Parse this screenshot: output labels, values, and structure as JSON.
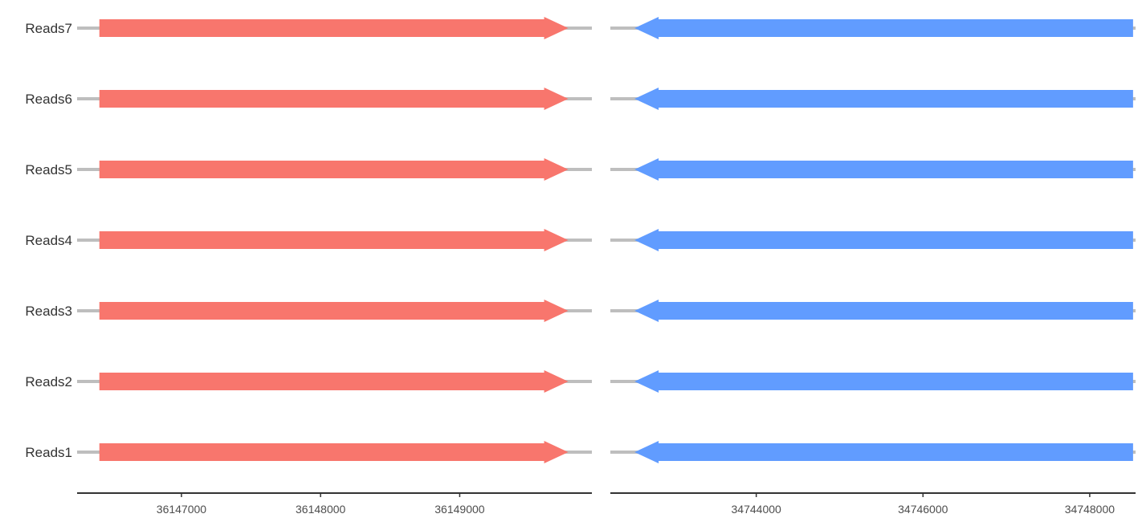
{
  "chart_data": [
    {
      "type": "gene-arrow",
      "title": "",
      "xlabel": "",
      "ylabel": "",
      "xlim": [
        36146250,
        36149950
      ],
      "xticks": [
        36147000,
        36148000,
        36149000
      ],
      "tick_labels": [
        "36147000",
        "36148000",
        "36149000"
      ],
      "rows": [
        "Reads1",
        "Reads2",
        "Reads3",
        "Reads4",
        "Reads5",
        "Reads6",
        "Reads7"
      ],
      "line_range": [
        36146250,
        36149950
      ],
      "features": [
        {
          "row": "Reads1",
          "start": 36146410,
          "end": 36149780,
          "strand": "+"
        },
        {
          "row": "Reads2",
          "start": 36146410,
          "end": 36149780,
          "strand": "+"
        },
        {
          "row": "Reads3",
          "start": 36146410,
          "end": 36149780,
          "strand": "+"
        },
        {
          "row": "Reads4",
          "start": 36146410,
          "end": 36149780,
          "strand": "+"
        },
        {
          "row": "Reads5",
          "start": 36146410,
          "end": 36149780,
          "strand": "+"
        },
        {
          "row": "Reads6",
          "start": 36146410,
          "end": 36149780,
          "strand": "+"
        },
        {
          "row": "Reads7",
          "start": 36146410,
          "end": 36149780,
          "strand": "+"
        }
      ],
      "color": "#F8766D"
    },
    {
      "type": "gene-arrow",
      "title": "",
      "xlabel": "",
      "ylabel": "",
      "xlim": [
        34742250,
        34748550
      ],
      "xticks": [
        34744000,
        34746000,
        34748000
      ],
      "tick_labels": [
        "34744000",
        "34746000",
        "34748000"
      ],
      "rows": [
        "Reads1",
        "Reads2",
        "Reads3",
        "Reads4",
        "Reads5",
        "Reads6",
        "Reads7"
      ],
      "line_range": [
        34742250,
        34748550
      ],
      "features": [
        {
          "row": "Reads1",
          "start": 34748520,
          "end": 34742540,
          "strand": "-"
        },
        {
          "row": "Reads2",
          "start": 34748520,
          "end": 34742540,
          "strand": "-"
        },
        {
          "row": "Reads3",
          "start": 34748520,
          "end": 34742540,
          "strand": "-"
        },
        {
          "row": "Reads4",
          "start": 34748520,
          "end": 34742540,
          "strand": "-"
        },
        {
          "row": "Reads5",
          "start": 34748520,
          "end": 34742540,
          "strand": "-"
        },
        {
          "row": "Reads6",
          "start": 34748520,
          "end": 34742540,
          "strand": "-"
        },
        {
          "row": "Reads7",
          "start": 34748520,
          "end": 34742540,
          "strand": "-"
        }
      ],
      "color": "#619CFF"
    }
  ],
  "style": {
    "baseline_color": "#BEBEBE",
    "axis_color": "#333333"
  }
}
